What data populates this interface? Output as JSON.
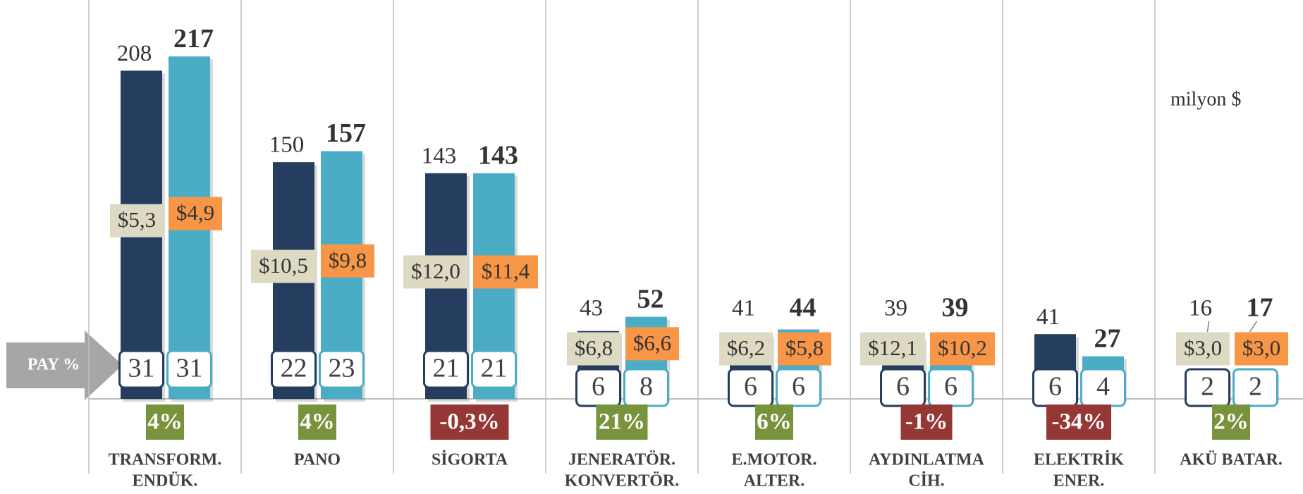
{
  "chart_data": {
    "type": "bar",
    "categories": [
      [
        "TRANSFORM.",
        "ENDÜK."
      ],
      [
        "PANO"
      ],
      [
        "SİGORTA"
      ],
      [
        "JENERATÖR.",
        "KONVERTÖR."
      ],
      [
        "E.MOTOR.",
        "ALTER."
      ],
      [
        "AYDINLATMA",
        "CİH."
      ],
      [
        "ELEKTRİK",
        "ENER."
      ],
      [
        "AKÜ BATAR."
      ]
    ],
    "series": [
      {
        "color": "#253d5e",
        "values": [
          208,
          150,
          143,
          43,
          41,
          39,
          41,
          16
        ]
      },
      {
        "color": "#4bacc6",
        "values": [
          217,
          157,
          143,
          52,
          44,
          39,
          27,
          17
        ]
      }
    ],
    "ylim": [
      0,
      230
    ],
    "price_series": [
      {
        "color": "#ddd9c3",
        "values": [
          5.3,
          10.5,
          12.0,
          6.8,
          6.2,
          12.1,
          null,
          3.0
        ],
        "value_labels": [
          "$5,3",
          "$10,5",
          "$12,0",
          "$6,8",
          "$6,2",
          "$12,1",
          null,
          "$3,0"
        ]
      },
      {
        "color": "#f79646",
        "values": [
          4.9,
          9.8,
          11.4,
          6.6,
          5.8,
          10.2,
          null,
          3.0
        ],
        "value_labels": [
          "$4,9",
          "$9,8",
          "$11,4",
          "$6,6",
          "$5,8",
          "$10,2",
          null,
          "$3,0"
        ]
      }
    ],
    "share_series": [
      {
        "values": [
          31,
          22,
          21,
          6,
          6,
          6,
          6,
          2
        ]
      },
      {
        "values": [
          31,
          23,
          21,
          8,
          6,
          6,
          4,
          2
        ]
      }
    ],
    "change": {
      "values": [
        4,
        4,
        -0.3,
        21,
        6,
        -1,
        -34,
        2
      ],
      "value_labels": [
        "4%",
        "4%",
        "-0,3%",
        "21%",
        "6%",
        "-1%",
        "-34%",
        "2%"
      ],
      "positive_color": "#77933c",
      "negative_color": "#953735"
    },
    "share_label": "PAY %",
    "unit_label": "milyon $"
  }
}
